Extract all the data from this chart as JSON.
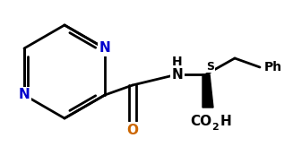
{
  "bg_color": "#ffffff",
  "bond_color": "#000000",
  "N_color": "#0000cd",
  "O_color": "#cc6600",
  "lw": 2.0,
  "figsize": [
    3.27,
    1.83
  ],
  "dpi": 100,
  "xlim": [
    0,
    327
  ],
  "ylim": [
    0,
    183
  ]
}
